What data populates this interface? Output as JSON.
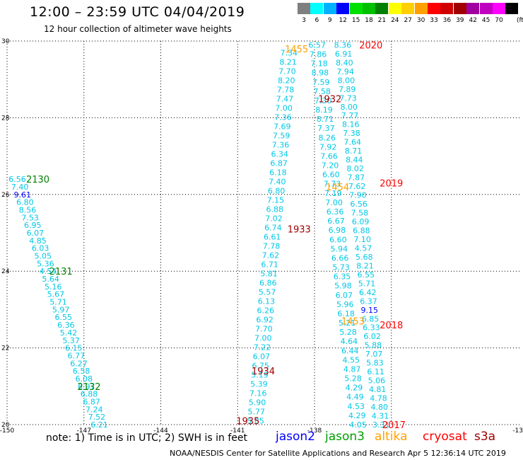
{
  "title": "12:00 – 23:59 UTC 04/04/2019",
  "subtitle": "12 hour collection of altimeter wave heights",
  "color_scale": {
    "unit": "(ft)",
    "levels": [
      {
        "label": "3",
        "color": "#7f7f7f"
      },
      {
        "label": "6",
        "color": "#00ffff"
      },
      {
        "label": "9",
        "color": "#00b2ff"
      },
      {
        "label": "12",
        "color": "#0000ff"
      },
      {
        "label": "15",
        "color": "#00e000"
      },
      {
        "label": "18",
        "color": "#00c000"
      },
      {
        "label": "21",
        "color": "#008000"
      },
      {
        "label": "24",
        "color": "#ffff00"
      },
      {
        "label": "27",
        "color": "#ffd000"
      },
      {
        "label": "30",
        "color": "#ffa000"
      },
      {
        "label": "33",
        "color": "#ff0000"
      },
      {
        "label": "36",
        "color": "#d00000"
      },
      {
        "label": "39",
        "color": "#a00000"
      },
      {
        "label": "42",
        "color": "#a000a0"
      },
      {
        "label": "45",
        "color": "#c000c0"
      },
      {
        "label": "70",
        "color": "#ff00ff"
      },
      {
        "label": "",
        "color": "#000000"
      }
    ]
  },
  "note": "note:  1) Time is in UTC; 2) SWH is in feet",
  "missions": [
    {
      "name": "jason2",
      "color": "#0000ff"
    },
    {
      "name": "jason3",
      "color": "#00a000"
    },
    {
      "name": "altika",
      "color": "#ffa000"
    },
    {
      "name": "cryosat",
      "color": "#ff0000"
    },
    {
      "name": "s3a",
      "color": "#a00000"
    }
  ],
  "credit": "NOAA/NESDIS Center for Satellite Applications and Research    Apr  5 12:36:14 UTC 2019",
  "chart_data": {
    "type": "scatter",
    "xlim": [
      -150,
      -130
    ],
    "ylim": [
      20,
      30
    ],
    "x_ticks": [
      "-150",
      "-147",
      "-144",
      "-141",
      "-138",
      "-13"
    ],
    "y_ticks": [
      "20",
      "22",
      "24",
      "26",
      "28",
      "30"
    ],
    "grid": true,
    "times": [
      {
        "label": "2130",
        "x": -148.8,
        "y": 26.4,
        "color": "#008000"
      },
      {
        "label": "2131",
        "x": -147.9,
        "y": 24.0,
        "color": "#008000"
      },
      {
        "label": "2132",
        "x": -146.8,
        "y": 21.0,
        "color": "#008000"
      },
      {
        "label": "1455",
        "x": -138.7,
        "y": 29.8,
        "color": "#ffa000"
      },
      {
        "label": "1454",
        "x": -137.1,
        "y": 26.2,
        "color": "#ffa000"
      },
      {
        "label": "1453",
        "x": -136.5,
        "y": 22.7,
        "color": "#ffa000"
      },
      {
        "label": "2020",
        "x": -135.8,
        "y": 29.9,
        "color": "#ff0000"
      },
      {
        "label": "2019",
        "x": -135.0,
        "y": 26.3,
        "color": "#ff0000"
      },
      {
        "label": "2018",
        "x": -135.0,
        "y": 22.6,
        "color": "#ff0000"
      },
      {
        "label": "2017",
        "x": -134.9,
        "y": 20.0,
        "color": "#ff0000"
      },
      {
        "label": "1932",
        "x": -137.4,
        "y": 28.5,
        "color": "#a00000"
      },
      {
        "label": "1933",
        "x": -138.6,
        "y": 25.1,
        "color": "#a00000"
      },
      {
        "label": "1934",
        "x": -140.0,
        "y": 21.4,
        "color": "#a00000"
      },
      {
        "label": "1935",
        "x": -140.6,
        "y": 20.1,
        "color": "#a00000"
      }
    ],
    "tracks": [
      {
        "name": "jason3-2130",
        "start": [
          -149.6,
          26.4
        ],
        "end": [
          -146.4,
          20.0
        ],
        "values": [
          6.56,
          7.4,
          9.61,
          6.8,
          8.56,
          7.53,
          6.95,
          6.07,
          4.85,
          6.03,
          5.05,
          5.36,
          4.54,
          5.64,
          5.16,
          5.67,
          5.71,
          5.97,
          6.55,
          6.36,
          5.42,
          5.37,
          6.15,
          6.77,
          6.27,
          6.58,
          6.08,
          6.97,
          6.88,
          6.87,
          7.24,
          7.52,
          6.21
        ]
      },
      {
        "name": "s3a-1932",
        "start": [
          -139.0,
          29.7
        ],
        "end": [
          -140.3,
          20.1
        ],
        "values": [
          7.34,
          8.21,
          7.7,
          8.2,
          7.78,
          7.47,
          7.0,
          7.36,
          7.69,
          7.59,
          7.36,
          6.34,
          6.87,
          6.18,
          7.4,
          6.8,
          7.15,
          6.88,
          7.02,
          6.74,
          6.61,
          7.78,
          7.62,
          6.71,
          5.81,
          6.86,
          5.57,
          6.13,
          6.26,
          6.92,
          7.7,
          7.0,
          7.22,
          6.07,
          6.75,
          5.19,
          5.39,
          7.16,
          5.9,
          5.77,
          5.85
        ]
      },
      {
        "name": "altika-1455",
        "start": [
          -137.9,
          29.9
        ],
        "end": [
          -136.3,
          20.0
        ],
        "values": [
          6.57,
          7.86,
          7.18,
          8.98,
          7.59,
          7.58,
          7.3,
          8.19,
          8.71,
          7.37,
          8.26,
          7.92,
          7.66,
          7.2,
          6.6,
          7.73,
          7.19,
          7.0,
          6.36,
          6.67,
          6.98,
          6.6,
          5.94,
          6.66,
          5.73,
          6.35,
          5.98,
          6.07,
          5.96,
          6.18,
          5.21,
          5.28,
          4.64,
          6.44,
          4.55,
          4.87,
          5.28,
          4.29,
          4.49,
          4.53,
          4.29,
          4.05
        ]
      },
      {
        "name": "cryosat-2020",
        "start": [
          -136.9,
          29.9
        ],
        "end": [
          -135.4,
          20.0
        ],
        "values": [
          8.36,
          6.91,
          8.4,
          7.94,
          8.0,
          7.89,
          7.73,
          8.0,
          7.77,
          8.16,
          7.38,
          7.64,
          8.71,
          8.44,
          8.02,
          7.87,
          7.62,
          7.9,
          6.56,
          7.58,
          6.09,
          6.88,
          7.1,
          4.57,
          5.68,
          8.21,
          6.55,
          5.71,
          6.42,
          6.37,
          9.15,
          6.85,
          6.33,
          6.02,
          5.88,
          7.07,
          5.83,
          6.11,
          5.06,
          4.81,
          4.78,
          4.8,
          4.31,
          3.31
        ]
      }
    ]
  }
}
